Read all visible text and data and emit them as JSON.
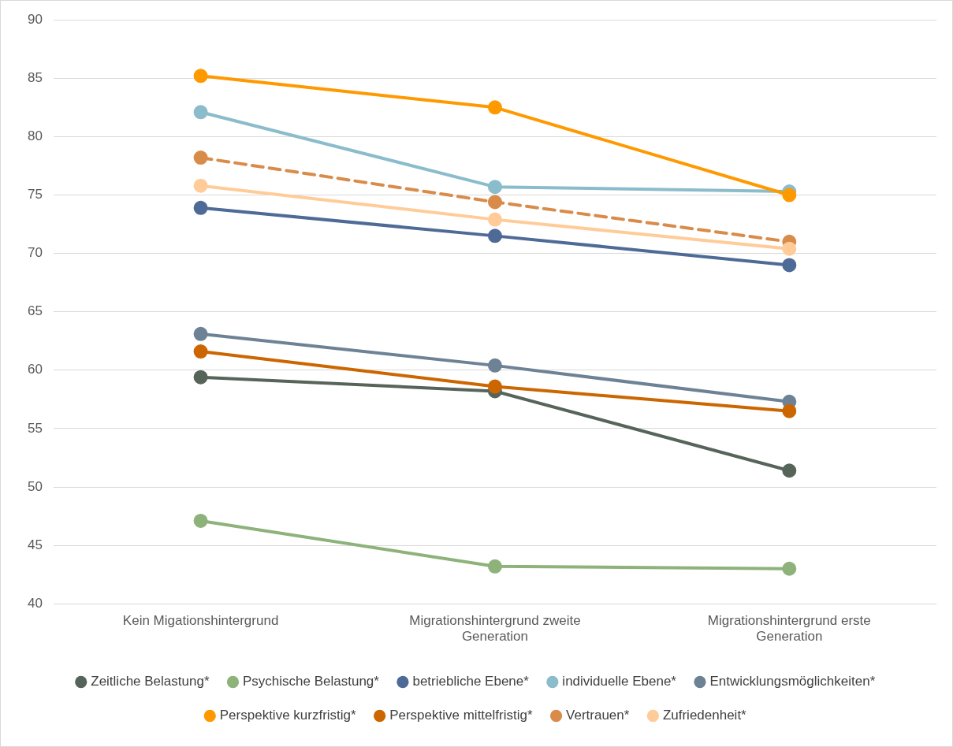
{
  "chart_data": {
    "type": "line",
    "categories": [
      "Kein Migationshintergrund",
      "Migrationshintergrund zweite Generation",
      "Migrationshintergrund erste Generation"
    ],
    "series": [
      {
        "name": "Zeitliche Belastung*",
        "color": "#56645a",
        "values": [
          59.4,
          58.2,
          51.4
        ]
      },
      {
        "name": "Psychische Belastung*",
        "color": "#8db27a",
        "values": [
          47.1,
          43.2,
          43.0
        ]
      },
      {
        "name": "betriebliche Ebene*",
        "color": "#4e6a96",
        "values": [
          73.9,
          71.5,
          69.0
        ]
      },
      {
        "name": "individuelle Ebene*",
        "color": "#8bbccc",
        "values": [
          82.1,
          75.7,
          75.3
        ]
      },
      {
        "name": "Entwicklungsmöglichkeiten*",
        "color": "#6e8296",
        "values": [
          63.1,
          60.4,
          57.3
        ]
      },
      {
        "name": "Perspektive kurzfristig*",
        "color": "#ff9900",
        "values": [
          85.2,
          82.5,
          75.0
        ]
      },
      {
        "name": "Perspektive mittelfristig*",
        "color": "#cc6600",
        "values": [
          61.6,
          58.6,
          56.5
        ]
      },
      {
        "name": "Vertrauen*",
        "color": "#d98c4a",
        "line_style": "dashed",
        "values": [
          78.2,
          74.4,
          71.0
        ]
      },
      {
        "name": "Zufriedenheit*",
        "color": "#ffcc99",
        "values": [
          75.8,
          72.9,
          70.4
        ]
      }
    ],
    "ylim": [
      40,
      90
    ],
    "yticks": [
      40,
      45,
      50,
      55,
      60,
      65,
      70,
      75,
      80,
      85,
      90
    ],
    "grid": "y",
    "legend": "bottom",
    "marker": "circle",
    "line_style": "solid"
  }
}
